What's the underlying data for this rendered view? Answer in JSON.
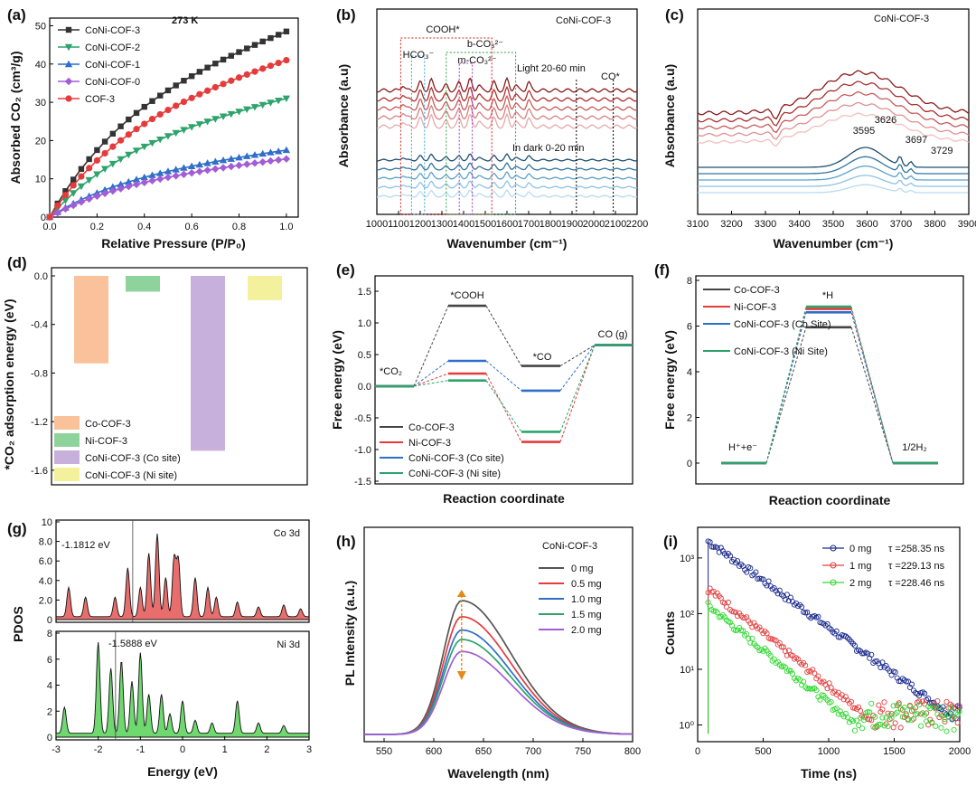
{
  "chart_data": [
    {
      "panel": "(a)",
      "type": "line",
      "xlabel": "Relative Pressure (P/P₀)",
      "ylabel": "Absorbed CO₂ (cm³/g)",
      "xlim": [
        0,
        1.0
      ],
      "ylim": [
        0,
        50
      ],
      "xticks": [
        "0.0",
        "0.2",
        "0.4",
        "0.6",
        "0.8",
        "1.0"
      ],
      "yticks": [
        "0",
        "10",
        "20",
        "30",
        "40",
        "50"
      ],
      "temperature": "273 K",
      "series": [
        {
          "name": "CoNi-COF-3",
          "color": "#333333",
          "marker": "square",
          "end": 48.5
        },
        {
          "name": "CoNi-COF-2",
          "color": "#2ea36b",
          "marker": "tri-down",
          "end": 31
        },
        {
          "name": "CoNi-COF-1",
          "color": "#2f6fc9",
          "marker": "tri-up",
          "end": 17.5
        },
        {
          "name": "CoNi-COF-0",
          "color": "#a25cd6",
          "marker": "diamond",
          "end": 15.2
        },
        {
          "name": "COF-3",
          "color": "#e53b3b",
          "marker": "circle",
          "end": 41
        }
      ]
    },
    {
      "panel": "(b)",
      "type": "line",
      "sample": "CoNi-COF-3",
      "xlabel": "Wavenumber (cm⁻¹)",
      "ylabel": "Absorbance (a.u)",
      "xlim": [
        1000,
        2200
      ],
      "xticks": [
        "1000",
        "1100",
        "1200",
        "1300",
        "1400",
        "1500",
        "1600",
        "1700",
        "1800",
        "1900",
        "2000",
        "2100",
        "2200"
      ],
      "labels": [
        "COOH*",
        "HCO₃⁻",
        "b-CO₃²⁻",
        "m-CO₃²⁻",
        "Light 20-60 min",
        "In dark 0-20 min",
        "CO*"
      ]
    },
    {
      "panel": "(c)",
      "type": "line",
      "sample": "CoNi-COF-3",
      "xlabel": "Wavenumber (cm⁻¹)",
      "ylabel": "Absorbance (a.u)",
      "xlim": [
        3100,
        3900
      ],
      "xticks": [
        "3100",
        "3200",
        "3300",
        "3400",
        "3500",
        "3600",
        "3700",
        "3800",
        "3900"
      ],
      "peaks": [
        "3595",
        "3626",
        "3697",
        "3729"
      ]
    },
    {
      "panel": "(d)",
      "type": "bar",
      "ylabel": "*CO₂ adsorption energy (eV)",
      "ylim": [
        -1.7,
        0
      ],
      "yticks": [
        "0.0",
        "-0.4",
        "-0.8",
        "-1.2",
        "-1.6"
      ],
      "categories": [
        "Co-COF-3",
        "Ni-COF-3",
        "CoNi-COF-3 (Co site)",
        "CoNi-COF-3 (Ni site)"
      ],
      "values": [
        -0.72,
        -0.13,
        -1.44,
        -0.2
      ],
      "colors": [
        "#f9c29a",
        "#8fd39c",
        "#c8b0dc",
        "#f3f19b"
      ]
    },
    {
      "panel": "(e)",
      "type": "line",
      "xlabel": "Reaction coordinate",
      "ylabel": "Free energy (eV)",
      "ylim": [
        -1.5,
        1.5
      ],
      "yticks": [
        "1.5",
        "1.0",
        "0.5",
        "0.0",
        "-0.5",
        "-1.0",
        "-1.5"
      ],
      "states": [
        "*CO₂",
        "*COOH",
        "*CO",
        "CO (g)"
      ],
      "series": [
        {
          "name": "Co-COF-3",
          "color": "#444444",
          "values": [
            0,
            1.27,
            0.32,
            0.65
          ]
        },
        {
          "name": "Ni-COF-3",
          "color": "#e53b3b",
          "values": [
            0,
            0.2,
            -0.88,
            0.65
          ]
        },
        {
          "name": "CoNi-COF-3 (Co site)",
          "color": "#2f6fc9",
          "values": [
            0,
            0.4,
            -0.07,
            0.65
          ]
        },
        {
          "name": "CoNi-COF-3 (Ni site)",
          "color": "#2ea36b",
          "values": [
            0,
            0.09,
            -0.72,
            0.65
          ]
        }
      ]
    },
    {
      "panel": "(f)",
      "type": "line",
      "xlabel": "Reaction coordinate",
      "ylabel": "Free energy (eV)",
      "ylim": [
        0,
        8
      ],
      "yticks": [
        "0",
        "2",
        "4",
        "6",
        "8"
      ],
      "states": [
        "H⁺+e⁻",
        "*H",
        "1/2H₂"
      ],
      "legend": [
        "Co-COF-3",
        "Ni-COF-3",
        "CoNi-COF-3 (Co Site)",
        "CoNi-COF-3 (Ni Site)"
      ],
      "series": [
        {
          "name": "Co-COF-3",
          "color": "#444444",
          "values": [
            0,
            5.95,
            0
          ]
        },
        {
          "name": "Ni-COF-3",
          "color": "#e53b3b",
          "values": [
            0,
            6.75,
            0
          ]
        },
        {
          "name": "CoNi-COF-3 (Co Site)",
          "color": "#2f6fc9",
          "values": [
            0,
            6.6,
            0
          ]
        },
        {
          "name": "CoNi-COF-3 (Ni Site)",
          "color": "#2ea36b",
          "values": [
            0,
            6.85,
            0
          ]
        }
      ]
    },
    {
      "panel": "(g)",
      "type": "area",
      "xlabel": "Energy (eV)",
      "ylabel": "PDOS",
      "xlim": [
        -3,
        3
      ],
      "xticks": [
        "-3",
        "-2",
        "-1",
        "0",
        "1",
        "2",
        "3"
      ],
      "top": {
        "orbital": "Co 3d",
        "center": "-1.1812 eV",
        "ylim": [
          0,
          10
        ],
        "yticks": [
          "0",
          "2.0",
          "4.0",
          "6.0",
          "8.0",
          "10"
        ]
      },
      "bottom": {
        "orbital": "Ni 3d",
        "center": "-1.5888 eV",
        "ylim": [
          0,
          8
        ],
        "yticks": [
          "0",
          "2",
          "4",
          "6",
          "8"
        ]
      }
    },
    {
      "panel": "(h)",
      "type": "line",
      "sample": "CoNi-COF-3",
      "xlabel": "Wavelength (nm)",
      "ylabel": "PL Intensity (a.u.)",
      "xlim": [
        530,
        800
      ],
      "xticks": [
        "550",
        "600",
        "650",
        "700",
        "750",
        "800"
      ],
      "series": [
        {
          "name": "0 mg",
          "color": "#555555",
          "peak": 1.0
        },
        {
          "name": "0.5 mg",
          "color": "#e53b3b",
          "peak": 0.88
        },
        {
          "name": "1.0 mg",
          "color": "#2f6fc9",
          "peak": 0.78
        },
        {
          "name": "1.5 mg",
          "color": "#2ea36b",
          "peak": 0.71
        },
        {
          "name": "2.0 mg",
          "color": "#a25cd6",
          "peak": 0.62
        }
      ]
    },
    {
      "panel": "(i)",
      "type": "scatter",
      "xlabel": "Time (ns)",
      "ylabel": "Counts",
      "xlim": [
        0,
        2000
      ],
      "xticks": [
        "0",
        "500",
        "1000",
        "1500",
        "2000"
      ],
      "yticks": [
        "10⁰",
        "10¹",
        "10²",
        "10³"
      ],
      "series": [
        {
          "name": "0 mg",
          "tau": "τ =258.35 ns",
          "color": "#1a2a8c",
          "peak": 2000
        },
        {
          "name": "1 mg",
          "tau": "τ =229.13 ns",
          "color": "#e04040",
          "peak": 280
        },
        {
          "name": "2 mg",
          "tau": "τ =228.46 ns",
          "color": "#2fd92f",
          "peak": 140
        }
      ]
    }
  ]
}
